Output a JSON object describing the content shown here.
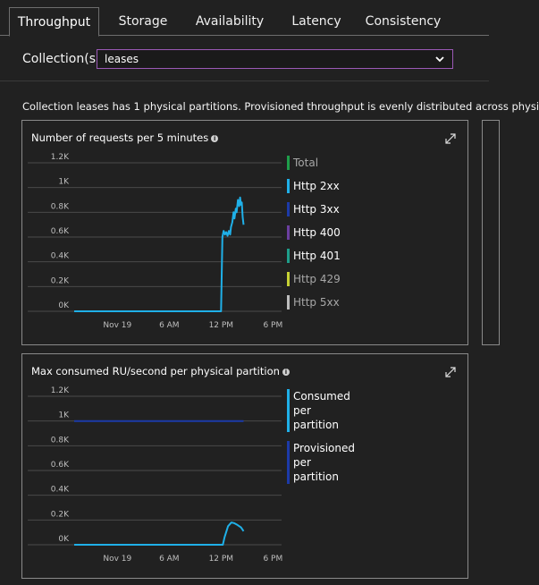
{
  "tabs": [
    {
      "label": "Throughput",
      "active": true
    },
    {
      "label": "Storage",
      "active": false
    },
    {
      "label": "Availability",
      "active": false
    },
    {
      "label": "Latency",
      "active": false
    },
    {
      "label": "Consistency",
      "active": false
    }
  ],
  "collection": {
    "label": "Collection(s)",
    "selected": "leases"
  },
  "info_text": "Collection leases has 1 physical partitions. Provisioned throughput is evenly distributed across physi",
  "icons": {
    "info": "info-icon",
    "expand": "expand-icon",
    "dropdown": "chevron-down-icon"
  },
  "colors": {
    "accent_border": "#9b59b6",
    "total": "#1e9e4a",
    "http2xx": "#1fb0e8",
    "http3xx": "#1c3aa8",
    "http400": "#6b3fa0",
    "http401": "#1e9e8a",
    "http429": "#c6d134",
    "http5xx": "#bdbdbd",
    "consumed": "#1fb0e8",
    "provisioned": "#1c3aa8"
  },
  "chart_data": [
    {
      "type": "line",
      "title": "Number of requests per 5 minutes",
      "yticks": [
        "1.2K",
        "1K",
        "0.8K",
        "0.6K",
        "0.4K",
        "0.2K",
        "0K"
      ],
      "xticks": [
        "Nov 19",
        "6 AM",
        "12 PM",
        "6 PM"
      ],
      "ylim": [
        0,
        1200
      ],
      "x_range_hours": [
        0,
        24
      ],
      "grid": true,
      "legend_position": "right",
      "legend": [
        {
          "name": "Total",
          "color": "#1e9e4a",
          "dim": true
        },
        {
          "name": "Http 2xx",
          "color": "#1fb0e8",
          "dim": false
        },
        {
          "name": "Http 3xx",
          "color": "#1c3aa8",
          "dim": false
        },
        {
          "name": "Http 400",
          "color": "#6b3fa0",
          "dim": false
        },
        {
          "name": "Http 401",
          "color": "#1e9e8a",
          "dim": false
        },
        {
          "name": "Http 429",
          "color": "#c6d134",
          "dim": true
        },
        {
          "name": "Http 5xx",
          "color": "#bdbdbd",
          "dim": true
        }
      ],
      "series": [
        {
          "name": "Http 2xx",
          "color": "#1fb0e8",
          "points": [
            [
              0,
              0
            ],
            [
              16.8,
              0
            ],
            [
              17.0,
              0
            ],
            [
              17.15,
              600
            ],
            [
              17.3,
              650
            ],
            [
              17.45,
              620
            ],
            [
              17.6,
              640
            ],
            [
              17.75,
              610
            ],
            [
              17.9,
              650
            ],
            [
              18.05,
              620
            ],
            [
              18.15,
              680
            ],
            [
              18.3,
              720
            ],
            [
              18.45,
              800
            ],
            [
              18.55,
              750
            ],
            [
              18.7,
              830
            ],
            [
              18.8,
              800
            ],
            [
              18.95,
              900
            ],
            [
              19.1,
              850
            ],
            [
              19.2,
              920
            ],
            [
              19.3,
              860
            ],
            [
              19.4,
              880
            ],
            [
              19.5,
              760
            ],
            [
              19.6,
              700
            ]
          ]
        }
      ]
    },
    {
      "type": "line",
      "title": "Max consumed RU/second per physical partition",
      "yticks": [
        "1.2K",
        "1K",
        "0.8K",
        "0.6K",
        "0.4K",
        "0.2K",
        "0K"
      ],
      "xticks": [
        "Nov 19",
        "6 AM",
        "12 PM",
        "6 PM"
      ],
      "ylim": [
        0,
        1200
      ],
      "x_range_hours": [
        0,
        24
      ],
      "grid": true,
      "legend_position": "right",
      "legend": [
        {
          "name": "Consumed per partition",
          "color": "#1fb0e8",
          "dim": false
        },
        {
          "name": "Provisioned per partition",
          "color": "#1c3aa8",
          "dim": false
        }
      ],
      "series": [
        {
          "name": "Provisioned per partition",
          "color": "#1c3aa8",
          "points": [
            [
              0,
              1000
            ],
            [
              19.6,
              1000
            ]
          ]
        },
        {
          "name": "Consumed per partition",
          "color": "#1fb0e8",
          "points": [
            [
              0,
              0
            ],
            [
              16.8,
              0
            ],
            [
              17.2,
              0
            ],
            [
              17.4,
              60
            ],
            [
              17.8,
              150
            ],
            [
              18.2,
              180
            ],
            [
              18.5,
              175
            ],
            [
              18.9,
              160
            ],
            [
              19.3,
              140
            ],
            [
              19.6,
              110
            ]
          ]
        }
      ]
    }
  ]
}
